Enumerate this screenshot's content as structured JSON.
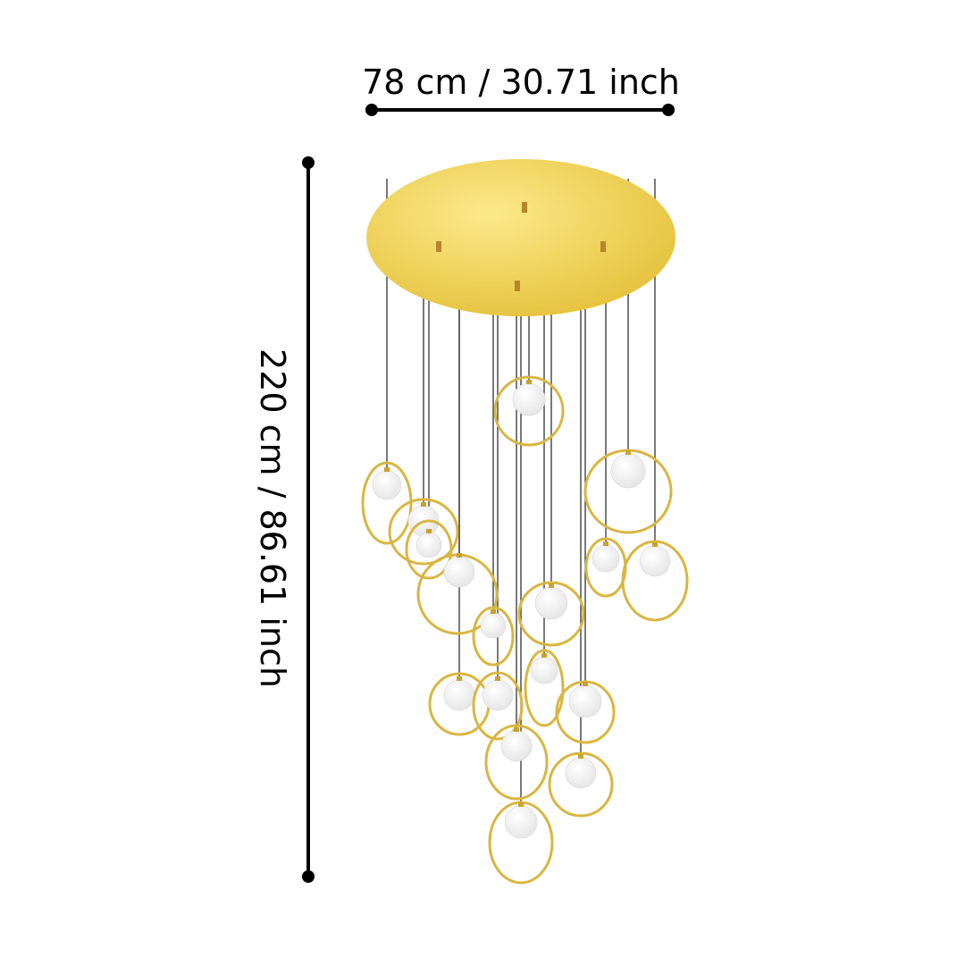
{
  "dimensions": {
    "width_label": "78 cm / 30.71 inch",
    "height_label": "220 cm / 86.61 inch"
  },
  "product": {
    "type": "pendant chandelier",
    "finish_color": "#e8c84a",
    "globe_color": "#ffffff",
    "pendant_count": 17
  },
  "colors": {
    "dimension_line": "#000000",
    "canopy": "#f0d25a",
    "ring": "#d9b640"
  }
}
